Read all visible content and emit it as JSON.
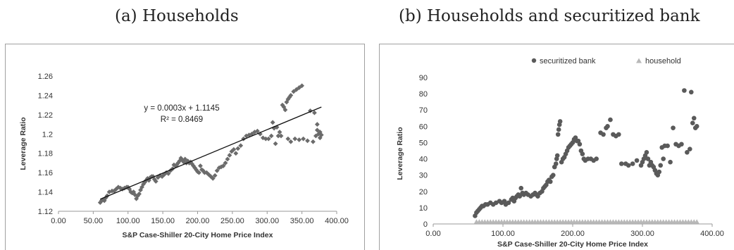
{
  "captions": {
    "a": "(a) Households",
    "b": "(b) Households and securitized bank"
  },
  "chart_data": [
    {
      "type": "scatter",
      "title": "",
      "xlabel": "S&P Case-Shiller 20-City Home Price Index",
      "ylabel": "Leverage Ratio",
      "xlim": [
        0,
        400
      ],
      "ylim": [
        1.12,
        1.26
      ],
      "x_ticks": [
        "0.00",
        "50.00",
        "100.00",
        "150.00",
        "200.00",
        "250.00",
        "300.00",
        "350.00",
        "400.00"
      ],
      "y_ticks": [
        "1.12",
        "1.14",
        "1.16",
        "1.18",
        "1.2",
        "1.22",
        "1.24",
        "1.26"
      ],
      "marker": "diamond",
      "marker_color": "#6b6b6b",
      "trendline": {
        "equation": "y = 0.0003x + 1.1145",
        "r2": "R² = 0.8469",
        "slope": 0.0003,
        "intercept": 1.1145,
        "x_range": [
          60,
          378
        ]
      },
      "series": [
        {
          "marker": "diamond",
          "points": [
            [
              60,
              1.129
            ],
            [
              62,
              1.131
            ],
            [
              64,
              1.132
            ],
            [
              66,
              1.131
            ],
            [
              68,
              1.134
            ],
            [
              70,
              1.136
            ],
            [
              73,
              1.14
            ],
            [
              77,
              1.141
            ],
            [
              80,
              1.141
            ],
            [
              83,
              1.143
            ],
            [
              86,
              1.145
            ],
            [
              89,
              1.144
            ],
            [
              92,
              1.143
            ],
            [
              95,
              1.144
            ],
            [
              98,
              1.145
            ],
            [
              100,
              1.145
            ],
            [
              102,
              1.143
            ],
            [
              104,
              1.14
            ],
            [
              106,
              1.139
            ],
            [
              108,
              1.14
            ],
            [
              110,
              1.137
            ],
            [
              112,
              1.133
            ],
            [
              114,
              1.136
            ],
            [
              116,
              1.138
            ],
            [
              118,
              1.142
            ],
            [
              120,
              1.145
            ],
            [
              122,
              1.148
            ],
            [
              124,
              1.15
            ],
            [
              126,
              1.152
            ],
            [
              128,
              1.154
            ],
            [
              130,
              1.152
            ],
            [
              132,
              1.155
            ],
            [
              134,
              1.156
            ],
            [
              136,
              1.156
            ],
            [
              138,
              1.153
            ],
            [
              140,
              1.151
            ],
            [
              143,
              1.155
            ],
            [
              146,
              1.157
            ],
            [
              149,
              1.156
            ],
            [
              152,
              1.158
            ],
            [
              155,
              1.16
            ],
            [
              158,
              1.159
            ],
            [
              161,
              1.162
            ],
            [
              164,
              1.164
            ],
            [
              166,
              1.168
            ],
            [
              168,
              1.167
            ],
            [
              170,
              1.168
            ],
            [
              172,
              1.17
            ],
            [
              174,
              1.172
            ],
            [
              176,
              1.175
            ],
            [
              178,
              1.173
            ],
            [
              180,
              1.171
            ],
            [
              182,
              1.174
            ],
            [
              184,
              1.17
            ],
            [
              186,
              1.172
            ],
            [
              188,
              1.17
            ],
            [
              190,
              1.171
            ],
            [
              192,
              1.169
            ],
            [
              194,
              1.167
            ],
            [
              196,
              1.165
            ],
            [
              198,
              1.163
            ],
            [
              200,
              1.161
            ],
            [
              202,
              1.16
            ],
            [
              204,
              1.167
            ],
            [
              206,
              1.163
            ],
            [
              208,
              1.162
            ],
            [
              210,
              1.16
            ],
            [
              213,
              1.16
            ],
            [
              216,
              1.158
            ],
            [
              219,
              1.156
            ],
            [
              222,
              1.154
            ],
            [
              225,
              1.157
            ],
            [
              228,
              1.162
            ],
            [
              231,
              1.165
            ],
            [
              234,
              1.166
            ],
            [
              237,
              1.167
            ],
            [
              240,
              1.17
            ],
            [
              243,
              1.174
            ],
            [
              246,
              1.178
            ],
            [
              249,
              1.182
            ],
            [
              252,
              1.184
            ],
            [
              255,
              1.18
            ],
            [
              258,
              1.185
            ],
            [
              262,
              1.188
            ],
            [
              266,
              1.195
            ],
            [
              270,
              1.198
            ],
            [
              274,
              1.199
            ],
            [
              278,
              1.2
            ],
            [
              282,
              1.202
            ],
            [
              286,
              1.203
            ],
            [
              290,
              1.2
            ],
            [
              294,
              1.196
            ],
            [
              298,
              1.195
            ],
            [
              302,
              1.195
            ],
            [
              306,
              1.198
            ],
            [
              308,
              1.212
            ],
            [
              310,
              1.206
            ],
            [
              312,
              1.19
            ],
            [
              314,
              1.207
            ],
            [
              316,
              1.198
            ],
            [
              318,
              1.202
            ],
            [
              320,
              1.198
            ],
            [
              322,
              1.23
            ],
            [
              324,
              1.228
            ],
            [
              326,
              1.225
            ],
            [
              328,
              1.233
            ],
            [
              330,
              1.236
            ],
            [
              332,
              1.238
            ],
            [
              334,
              1.24
            ],
            [
              338,
              1.244
            ],
            [
              342,
              1.246
            ],
            [
              346,
              1.248
            ],
            [
              350,
              1.25
            ],
            [
              330,
              1.195
            ],
            [
              334,
              1.192
            ],
            [
              340,
              1.195
            ],
            [
              346,
              1.194
            ],
            [
              352,
              1.195
            ],
            [
              358,
              1.193
            ],
            [
              362,
              1.224
            ],
            [
              366,
              1.192
            ],
            [
              368,
              1.222
            ],
            [
              370,
              1.198
            ],
            [
              372,
              1.21
            ],
            [
              374,
              1.2
            ],
            [
              376,
              1.196
            ],
            [
              378,
              1.199
            ],
            [
              376,
              1.202
            ],
            [
              372,
              1.204
            ]
          ]
        }
      ]
    },
    {
      "type": "scatter",
      "title": "",
      "xlabel": "S&P Case-Shiller 20-City Home Price Index",
      "ylabel": "Leverage Ratio",
      "xlim": [
        0,
        400
      ],
      "ylim": [
        0,
        90
      ],
      "x_ticks": [
        "0.00",
        "100.00",
        "200.00",
        "300.00",
        "400.00"
      ],
      "y_ticks": [
        "0",
        "10",
        "20",
        "30",
        "40",
        "50",
        "60",
        "70",
        "80",
        "90"
      ],
      "legend_position": "top",
      "series": [
        {
          "name": "securitized bank",
          "marker": "circle",
          "color": "#5a5a5a",
          "points": [
            [
              60,
              5
            ],
            [
              62,
              7
            ],
            [
              64,
              8
            ],
            [
              66,
              9
            ],
            [
              68,
              10
            ],
            [
              70,
              11
            ],
            [
              72,
              11
            ],
            [
              75,
              12
            ],
            [
              78,
              12
            ],
            [
              82,
              13
            ],
            [
              86,
              12
            ],
            [
              90,
              13
            ],
            [
              95,
              14
            ],
            [
              98,
              13
            ],
            [
              102,
              14
            ],
            [
              104,
              12
            ],
            [
              108,
              13
            ],
            [
              112,
              15
            ],
            [
              114,
              16
            ],
            [
              116,
              14
            ],
            [
              118,
              16
            ],
            [
              120,
              17
            ],
            [
              122,
              18
            ],
            [
              124,
              17
            ],
            [
              126,
              22
            ],
            [
              128,
              19
            ],
            [
              130,
              18
            ],
            [
              133,
              19
            ],
            [
              136,
              18
            ],
            [
              140,
              17
            ],
            [
              143,
              18
            ],
            [
              146,
              19
            ],
            [
              148,
              18
            ],
            [
              150,
              17
            ],
            [
              153,
              19
            ],
            [
              156,
              20
            ],
            [
              158,
              22
            ],
            [
              160,
              23
            ],
            [
              162,
              24
            ],
            [
              164,
              26
            ],
            [
              166,
              27
            ],
            [
              168,
              26
            ],
            [
              170,
              29
            ],
            [
              172,
              30
            ],
            [
              174,
              35
            ],
            [
              176,
              37
            ],
            [
              177,
              40
            ],
            [
              178,
              42
            ],
            [
              179,
              55
            ],
            [
              180,
              58
            ],
            [
              181,
              61
            ],
            [
              182,
              63
            ],
            [
              184,
              38
            ],
            [
              186,
              40
            ],
            [
              188,
              41
            ],
            [
              190,
              43
            ],
            [
              192,
              45
            ],
            [
              194,
              47
            ],
            [
              196,
              48
            ],
            [
              198,
              49
            ],
            [
              200,
              50
            ],
            [
              202,
              52
            ],
            [
              204,
              53
            ],
            [
              206,
              51
            ],
            [
              208,
              51
            ],
            [
              210,
              49
            ],
            [
              212,
              45
            ],
            [
              214,
              43
            ],
            [
              216,
              40
            ],
            [
              218,
              39
            ],
            [
              222,
              40
            ],
            [
              226,
              40
            ],
            [
              230,
              39
            ],
            [
              234,
              40
            ],
            [
              240,
              56
            ],
            [
              244,
              55
            ],
            [
              248,
              59
            ],
            [
              250,
              60
            ],
            [
              254,
              64
            ],
            [
              258,
              55
            ],
            [
              262,
              54
            ],
            [
              266,
              55
            ],
            [
              270,
              37
            ],
            [
              276,
              37
            ],
            [
              280,
              36
            ],
            [
              286,
              37
            ],
            [
              292,
              39
            ],
            [
              298,
              36
            ],
            [
              300,
              38
            ],
            [
              302,
              40
            ],
            [
              304,
              42
            ],
            [
              306,
              44
            ],
            [
              308,
              40
            ],
            [
              310,
              36
            ],
            [
              312,
              38
            ],
            [
              314,
              36
            ],
            [
              316,
              35
            ],
            [
              318,
              33
            ],
            [
              320,
              31
            ],
            [
              322,
              30
            ],
            [
              324,
              32
            ],
            [
              326,
              36
            ],
            [
              328,
              47
            ],
            [
              330,
              40
            ],
            [
              332,
              48
            ],
            [
              336,
              48
            ],
            [
              340,
              38
            ],
            [
              344,
              59
            ],
            [
              348,
              49
            ],
            [
              352,
              48
            ],
            [
              356,
              49
            ],
            [
              360,
              82
            ],
            [
              364,
              44
            ],
            [
              368,
              46
            ],
            [
              370,
              81
            ],
            [
              372,
              62
            ],
            [
              374,
              65
            ],
            [
              376,
              59
            ],
            [
              378,
              60
            ]
          ]
        },
        {
          "name": "household",
          "marker": "triangle",
          "color": "#b8b8b8",
          "constant_y": 1.2,
          "x_from": 62,
          "x_to": 378,
          "x_step": 4
        }
      ]
    }
  ]
}
